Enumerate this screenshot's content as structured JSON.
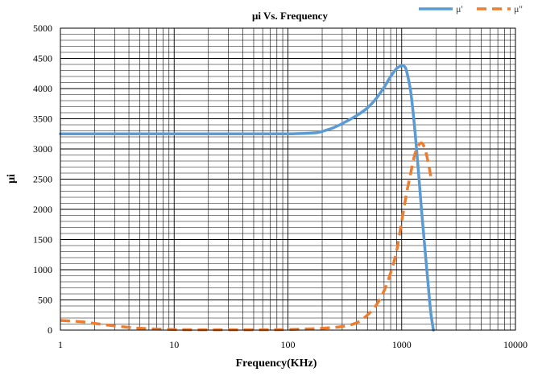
{
  "chart_data": {
    "type": "line",
    "title": "μi Vs. Frequency",
    "xlabel": "Frequency(KHz)",
    "ylabel": "μi",
    "xscale": "log",
    "xlim": [
      1,
      10000
    ],
    "ylim": [
      0,
      5000
    ],
    "x_ticks": [
      1,
      10,
      100,
      1000,
      10000
    ],
    "x_tick_labels": [
      "1",
      "10",
      "100",
      "1000",
      "10000"
    ],
    "y_ticks": [
      0,
      500,
      1000,
      1500,
      2000,
      2500,
      3000,
      3500,
      4000,
      4500,
      5000
    ],
    "y_tick_labels": [
      "0",
      "500",
      "1000",
      "1500",
      "2000",
      "2500",
      "3000",
      "3500",
      "4000",
      "4500",
      "5000"
    ],
    "grid": true,
    "legend_position": "top-right",
    "series": [
      {
        "name": "μ'",
        "color": "#5b9bd5",
        "style": "solid",
        "x": [
          1,
          2,
          5,
          10,
          20,
          50,
          100,
          150,
          180,
          200,
          250,
          300,
          400,
          500,
          600,
          700,
          800,
          900,
          1000,
          1050,
          1100,
          1200,
          1300,
          1400,
          1500,
          1600,
          1700,
          1800,
          1900
        ],
        "y": [
          3250,
          3250,
          3250,
          3250,
          3250,
          3250,
          3250,
          3260,
          3270,
          3290,
          3350,
          3420,
          3550,
          3680,
          3840,
          4020,
          4200,
          4330,
          4380,
          4370,
          4300,
          3950,
          3350,
          2650,
          1950,
          1350,
          800,
          300,
          0
        ]
      },
      {
        "name": "μ''",
        "color": "#ed7d31",
        "style": "dashed",
        "x": [
          1,
          1.5,
          2,
          3,
          5,
          10,
          20,
          50,
          100,
          200,
          300,
          400,
          500,
          600,
          700,
          800,
          900,
          1000,
          1100,
          1200,
          1300,
          1400,
          1500,
          1600,
          1700,
          1800
        ],
        "y": [
          160,
          140,
          110,
          70,
          30,
          10,
          5,
          5,
          10,
          30,
          60,
          120,
          250,
          420,
          650,
          950,
          1300,
          1800,
          2250,
          2600,
          2900,
          3050,
          3100,
          3000,
          2800,
          2550
        ]
      }
    ]
  }
}
